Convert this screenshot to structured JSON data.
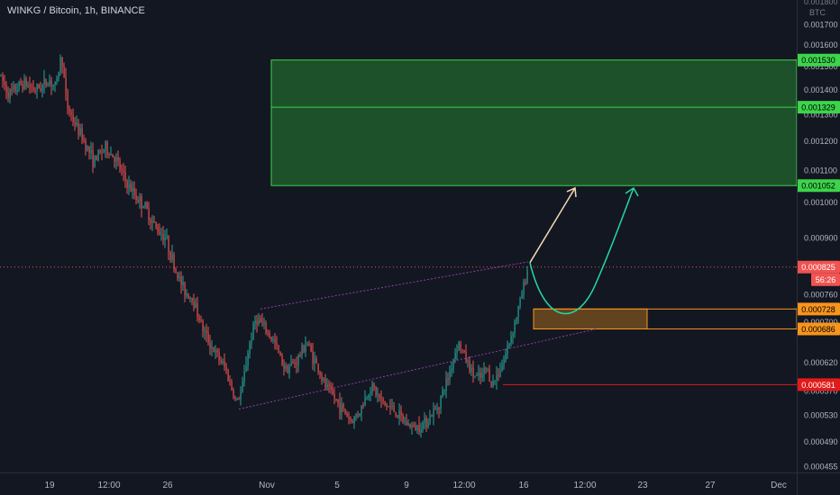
{
  "header": {
    "title": "WINKG / Bitcoin, 1h, BINANCE",
    "currency": "BTC",
    "top_tick": "0.001800"
  },
  "countdown": "56:26",
  "colors": {
    "background": "#131722",
    "up": "#26a69a",
    "down": "#ef5350",
    "target_zone": "#1e5c2a",
    "target_line": "#3cd44b",
    "entry_zone": "#f7941d",
    "stop_line": "#e21a1a",
    "current_price": "#f05350",
    "trendline": "#8e3fa8",
    "arrow_straight": "#f4d9b3",
    "arrow_curve": "#26d8a0"
  },
  "chart_data": {
    "type": "candlestick",
    "title": "WINKG / Bitcoin, 1h, BINANCE",
    "y_scale": "log",
    "ylim": [
      0.000447,
      0.00183
    ],
    "y_ticks": [
      "0.000455",
      "0.000490",
      "0.000530",
      "0.000570",
      "0.000620",
      "0.000700",
      "0.000760",
      "0.000830",
      "0.000900",
      "0.001000",
      "0.001100",
      "0.001200",
      "0.001300",
      "0.001400",
      "0.001500",
      "0.001600",
      "0.001700"
    ],
    "x_labels": [
      "19",
      "12:00",
      "26",
      "Nov",
      "5",
      "9",
      "12:00",
      "16",
      "12:00",
      "23",
      "27",
      "Dec"
    ],
    "price_markers": [
      {
        "label": "0.001530",
        "price": 0.00153,
        "role": "target-top"
      },
      {
        "label": "0.001329",
        "price": 0.001329,
        "role": "target-mid"
      },
      {
        "label": "0.001052",
        "price": 0.001052,
        "role": "target-bottom"
      },
      {
        "label": "0.000825",
        "price": 0.000825,
        "role": "current-price"
      },
      {
        "label": "0.000728",
        "price": 0.000728,
        "role": "entry-top"
      },
      {
        "label": "0.000686",
        "price": 0.000686,
        "role": "entry-bottom"
      },
      {
        "label": "0.000581",
        "price": 0.000581,
        "role": "stop-loss"
      }
    ],
    "price_path": [
      [
        0,
        0.00146
      ],
      [
        10,
        0.00138
      ],
      [
        25,
        0.00143
      ],
      [
        40,
        0.0014
      ],
      [
        55,
        0.00144
      ],
      [
        62,
        0.00141
      ],
      [
        68,
        0.00156
      ],
      [
        74,
        0.00134
      ],
      [
        82,
        0.00127
      ],
      [
        92,
        0.00121
      ],
      [
        104,
        0.00113
      ],
      [
        116,
        0.00118
      ],
      [
        128,
        0.00114
      ],
      [
        140,
        0.00106
      ],
      [
        150,
        0.00102
      ],
      [
        160,
        0.00099
      ],
      [
        172,
        0.00093
      ],
      [
        184,
        0.0009
      ],
      [
        194,
        0.00082
      ],
      [
        204,
        0.00077
      ],
      [
        214,
        0.00075
      ],
      [
        226,
        0.00068
      ],
      [
        238,
        0.00064
      ],
      [
        250,
        0.00061
      ],
      [
        262,
        0.00055
      ],
      [
        268,
        0.00057
      ],
      [
        276,
        0.00065
      ],
      [
        284,
        0.00071
      ],
      [
        292,
        0.00069
      ],
      [
        304,
        0.00066
      ],
      [
        316,
        0.00061
      ],
      [
        328,
        0.00062
      ],
      [
        340,
        0.00066
      ],
      [
        350,
        0.00062
      ],
      [
        360,
        0.00058
      ],
      [
        370,
        0.00056
      ],
      [
        380,
        0.00054
      ],
      [
        390,
        0.00052
      ],
      [
        400,
        0.00054
      ],
      [
        412,
        0.00058
      ],
      [
        424,
        0.00055
      ],
      [
        436,
        0.00054
      ],
      [
        448,
        0.00052
      ],
      [
        460,
        0.00051
      ],
      [
        472,
        0.00052
      ],
      [
        484,
        0.00054
      ],
      [
        492,
        0.00057
      ],
      [
        500,
        0.00061
      ],
      [
        508,
        0.00066
      ],
      [
        516,
        0.00063
      ],
      [
        524,
        0.0006
      ],
      [
        532,
        0.00059
      ],
      [
        540,
        0.00061
      ],
      [
        546,
        0.00058
      ],
      [
        552,
        0.0006
      ],
      [
        560,
        0.00063
      ],
      [
        568,
        0.00068
      ],
      [
        574,
        0.00072
      ],
      [
        580,
        0.00077
      ],
      [
        586,
        0.00083
      ]
    ],
    "annotations": [
      {
        "type": "target-zone",
        "from_x": 301,
        "to_x": 884,
        "top": 0.00153,
        "bottom": 0.001052
      },
      {
        "type": "entry-zone",
        "from_x": 592,
        "to_x": 884,
        "top": 0.000728,
        "bottom": 0.000686
      },
      {
        "type": "stop-line",
        "from_x": 558,
        "to_x": 884,
        "price": 0.000581
      },
      {
        "type": "trendline",
        "from": [
          289,
          0.000728
        ],
        "to": [
          586,
          0.000838
        ]
      },
      {
        "type": "trendline",
        "from": [
          265,
          0.00054
        ],
        "to": [
          662,
          0.000686
        ]
      }
    ]
  }
}
